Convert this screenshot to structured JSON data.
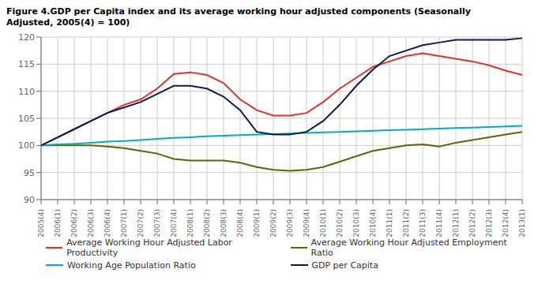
{
  "chart_data": {
    "type": "line",
    "title": "Figure 4.GDP per Capita index and its average working hour adjusted components (Seasonally\nAdjusted, 2005(4) = 100)",
    "categories": [
      "2005(4)",
      "2006(1)",
      "2006(2)",
      "2006(3)",
      "2006(4)",
      "2007(1)",
      "2007(2)",
      "2007(3)",
      "2007(4)",
      "2008(1)",
      "2008(2)",
      "2008(3)",
      "2008(4)",
      "2009(1)",
      "2009(2)",
      "2009(3)",
      "2009(4)",
      "2010(1)",
      "2010(2)",
      "2010(3)",
      "2010(4)",
      "2011(1)",
      "2011(2)",
      "2011(3)",
      "2011(4)",
      "2012(1)",
      "2012(2)",
      "2012(3)",
      "2012(4)",
      "2013(1)"
    ],
    "series": [
      {
        "name": "Average Working Hour Adjusted Labor Productivity",
        "color": "#e03030",
        "values": [
          100,
          101.5,
          103,
          104.5,
          106,
          107.5,
          108.5,
          110.5,
          113.2,
          113.5,
          113.0,
          111.5,
          108.5,
          106.5,
          105.5,
          105.5,
          106.0,
          108.0,
          110.5,
          112.5,
          114.5,
          115.5,
          116.5,
          117.0,
          116.5,
          116.0,
          115.5,
          114.8,
          113.8,
          113.0
        ]
      },
      {
        "name": "Average Working Hour Adjusted Employment Ratio",
        "color": "#636300",
        "values": [
          100,
          100.0,
          100.0,
          100.0,
          99.8,
          99.5,
          99.0,
          98.5,
          97.5,
          97.2,
          97.2,
          97.2,
          96.8,
          96.0,
          95.5,
          95.3,
          95.5,
          96.0,
          97.0,
          98.0,
          99.0,
          99.5,
          100.0,
          100.2,
          99.8,
          100.5,
          101.0,
          101.5,
          102.0,
          102.5
        ]
      },
      {
        "name": "Working Age Population Ratio",
        "color": "#00aacc",
        "values": [
          100.0,
          100.2,
          100.3,
          100.5,
          100.7,
          100.8,
          101.0,
          101.2,
          101.4,
          101.5,
          101.7,
          101.8,
          101.9,
          102.0,
          102.1,
          102.2,
          102.3,
          102.4,
          102.5,
          102.6,
          102.7,
          102.8,
          102.9,
          103.0,
          103.1,
          103.2,
          103.3,
          103.4,
          103.5,
          103.6
        ]
      },
      {
        "name": "GDP per Capita",
        "color": "#101850",
        "values": [
          100,
          101.5,
          103.0,
          104.5,
          106.0,
          107.0,
          108.0,
          109.5,
          111.0,
          111.0,
          110.5,
          109.0,
          106.5,
          102.5,
          102.0,
          102.0,
          102.5,
          104.5,
          107.5,
          111.0,
          114.0,
          116.5,
          117.5,
          118.5,
          119.0,
          119.5,
          119.5,
          119.5,
          119.5,
          119.8
        ]
      }
    ],
    "ylim": [
      90,
      120
    ],
    "yticks": [
      90,
      95,
      100,
      105,
      110,
      115,
      120
    ],
    "grid": true,
    "legend": "bottom"
  }
}
